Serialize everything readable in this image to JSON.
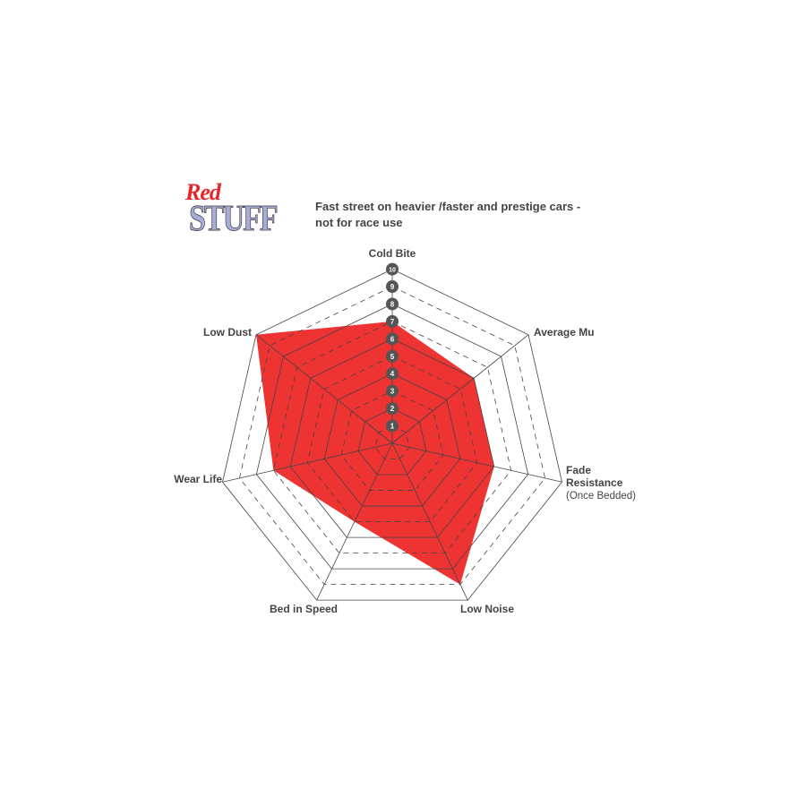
{
  "logo": {
    "line1": "Red",
    "line2": "STUFF"
  },
  "subtitle_lines": [
    "Fast street on heavier /faster and prestige cars -",
    "not for race use"
  ],
  "colors": {
    "fill": "#ee3333",
    "grid": "#444444",
    "tick_badge": "#555555"
  },
  "chart_data": {
    "type": "radar",
    "axes": [
      "Cold Bite",
      "Average Mu",
      "Fade Resistance (Once Bedded)",
      "Low Noise",
      "Bed in Speed",
      "Wear Life",
      "Low Dust"
    ],
    "axis_labels": [
      [
        "Cold Bite"
      ],
      [
        "Average Mu"
      ],
      [
        "Fade",
        "Resistance",
        "(Once Bedded)"
      ],
      [
        "Low Noise"
      ],
      [
        "Bed in Speed"
      ],
      [
        "Wear Life"
      ],
      [
        "Low Dust"
      ]
    ],
    "values": [
      7,
      6,
      6,
      9,
      5,
      7,
      10
    ],
    "range": [
      0,
      10
    ],
    "ticks": [
      "1",
      "2",
      "3",
      "4",
      "5",
      "6",
      "7",
      "8",
      "9",
      "10"
    ],
    "grid": "solid even rings, dashed odd rings"
  }
}
